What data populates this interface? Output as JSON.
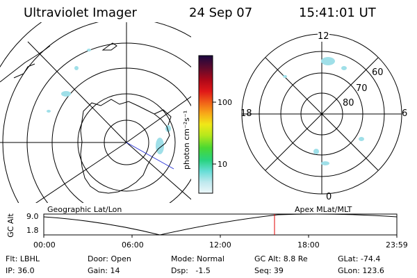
{
  "header": {
    "title": "Ultraviolet Imager",
    "date": "24 Sep 07",
    "time": "15:41:01 UT"
  },
  "colorbar": {
    "unit_label": "photon cm⁻²s⁻¹",
    "ticks": [
      {
        "label": "100",
        "value": 100
      },
      {
        "label": "10",
        "value": 10
      }
    ]
  },
  "polar_plot": {
    "top_label": "12",
    "left_label": "18",
    "right_label": "6",
    "bottom_label": "0",
    "ring_labels": [
      "60",
      "70",
      "80"
    ]
  },
  "timeline": {
    "y_axis_label": "GC Alt",
    "y_ticks": [
      "9.0",
      "1.8"
    ],
    "left_title": "Geographic Lat/Lon",
    "right_title": "Apex MLat/MLT",
    "x_ticks": [
      "00:00",
      "06:00",
      "12:00",
      "18:00",
      "23:59"
    ],
    "current_time_fraction": 0.6535,
    "cursor_color": "#e00000"
  },
  "info": {
    "row1": {
      "flt": "Flt: LBHL",
      "door": "Door: Open",
      "mode": "Mode: Normal",
      "gcalt": "GC Alt: 8.8 Re",
      "glat": "GLat: -74.4"
    },
    "row2": {
      "ip": "IP: 36.0",
      "gain": "Gain: 14",
      "dsp": "Dsp:   -1.5",
      "seq": "Seq: 39",
      "glon": "GLon: 123.6"
    }
  },
  "colors": {
    "aurora": "#9fdfe8",
    "blue_line": "#2a35d8"
  }
}
